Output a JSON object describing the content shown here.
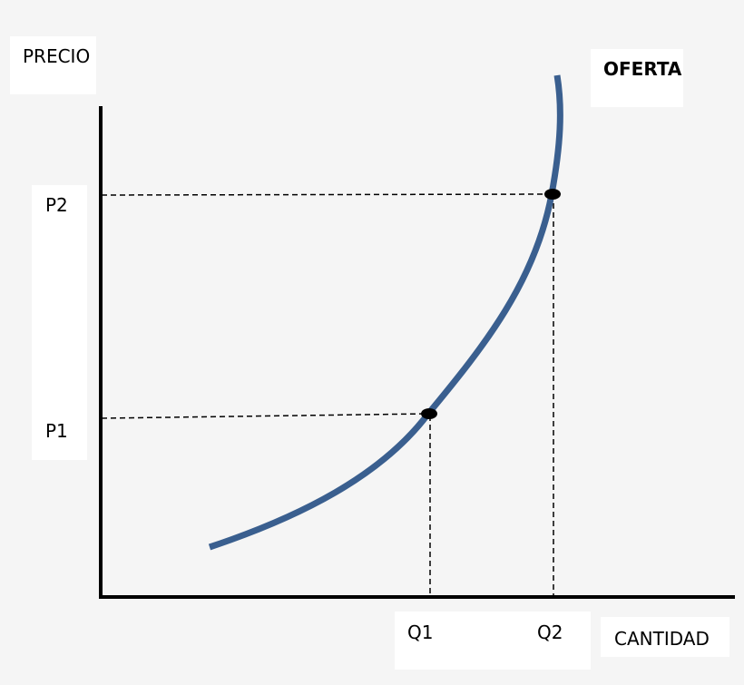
{
  "labels": {
    "y_axis": "PRECIO",
    "x_axis": "CANTIDAD",
    "curve": "OFERTA",
    "p1": "P1",
    "p2": "P2",
    "q1": "Q1",
    "q2": "Q2"
  },
  "colors": {
    "curve": "#3a5f8f",
    "axes": "#000000",
    "guides": "#000000",
    "points": "#000000"
  }
}
